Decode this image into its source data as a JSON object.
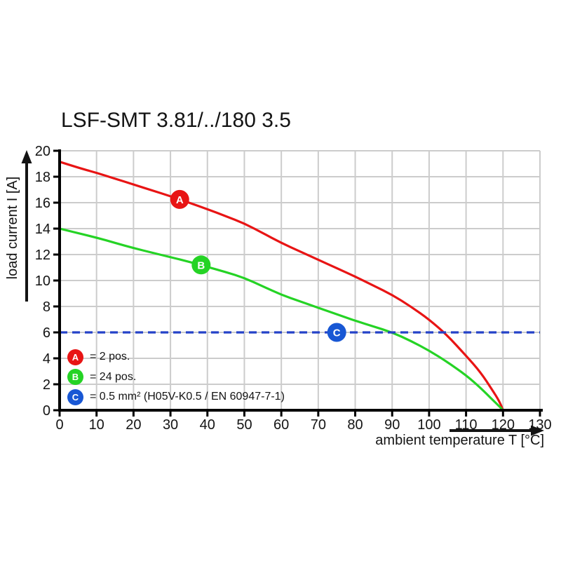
{
  "title": "LSF-SMT 3.81/../180 3.5",
  "chart_data": {
    "type": "line",
    "title": "LSF-SMT 3.81/../180 3.5",
    "xlabel": "ambient temperature T [°C]",
    "ylabel": "load current I [A]",
    "xlim": [
      0,
      130
    ],
    "ylim": [
      0,
      20
    ],
    "xticks": [
      0,
      10,
      20,
      30,
      40,
      50,
      60,
      70,
      80,
      90,
      100,
      110,
      120,
      130
    ],
    "yticks": [
      0,
      2,
      4,
      6,
      8,
      10,
      12,
      14,
      16,
      18,
      20
    ],
    "grid": true,
    "legend_position": "inside bottom-left",
    "colors": {
      "grid": "#cccccc",
      "axis": "#000000",
      "series_a_red": "#e81414",
      "series_b_green": "#25d325",
      "limit_line_blue": "#2442c8",
      "badge_blue": "#1857d4"
    },
    "series": [
      {
        "name": "A",
        "label": "2 pos.",
        "color": "#e81414",
        "dashed": false,
        "points": [
          [
            0,
            19.15
          ],
          [
            5,
            18.7
          ],
          [
            10,
            18.3
          ],
          [
            15,
            17.85
          ],
          [
            20,
            17.4
          ],
          [
            25,
            16.95
          ],
          [
            30,
            16.5
          ],
          [
            35,
            16.0
          ],
          [
            40,
            15.5
          ],
          [
            45,
            14.95
          ],
          [
            50,
            14.4
          ],
          [
            55,
            13.65
          ],
          [
            60,
            12.9
          ],
          [
            65,
            12.25
          ],
          [
            70,
            11.6
          ],
          [
            75,
            10.95
          ],
          [
            80,
            10.3
          ],
          [
            85,
            9.6
          ],
          [
            90,
            8.9
          ],
          [
            95,
            8.0
          ],
          [
            100,
            7.0
          ],
          [
            105,
            5.75
          ],
          [
            110,
            4.2
          ],
          [
            114,
            2.9
          ],
          [
            117,
            1.6
          ],
          [
            119,
            0.7
          ],
          [
            120,
            0
          ]
        ]
      },
      {
        "name": "B",
        "label": "24 pos.",
        "color": "#25d325",
        "dashed": false,
        "points": [
          [
            0,
            14.0
          ],
          [
            5,
            13.65
          ],
          [
            10,
            13.3
          ],
          [
            15,
            12.9
          ],
          [
            20,
            12.5
          ],
          [
            25,
            12.15
          ],
          [
            30,
            11.8
          ],
          [
            35,
            11.45
          ],
          [
            40,
            11.05
          ],
          [
            45,
            10.65
          ],
          [
            50,
            10.2
          ],
          [
            55,
            9.55
          ],
          [
            60,
            8.9
          ],
          [
            65,
            8.4
          ],
          [
            70,
            7.9
          ],
          [
            75,
            7.4
          ],
          [
            80,
            6.9
          ],
          [
            85,
            6.45
          ],
          [
            90,
            6.0
          ],
          [
            95,
            5.35
          ],
          [
            100,
            4.6
          ],
          [
            105,
            3.7
          ],
          [
            110,
            2.7
          ],
          [
            114,
            1.7
          ],
          [
            117,
            0.85
          ],
          [
            119,
            0.3
          ],
          [
            120,
            0
          ]
        ]
      },
      {
        "name": "C",
        "label": "0.5 mm² (H05V-K0.5 / EN 60947-7-1)",
        "color": "#2442c8",
        "dashed": true,
        "points": [
          [
            0,
            6
          ],
          [
            130,
            6
          ]
        ]
      }
    ],
    "markers": [
      {
        "letter": "A",
        "x": 32.5,
        "y": 16.25,
        "color": "#e81414"
      },
      {
        "letter": "B",
        "x": 38.3,
        "y": 11.2,
        "color": "#25d325"
      },
      {
        "letter": "C",
        "x": 75,
        "y": 6,
        "color": "#1857d4"
      }
    ],
    "legend": [
      {
        "letter": "A",
        "color": "#e81414",
        "text": "= 2 pos."
      },
      {
        "letter": "B",
        "color": "#25d325",
        "text": "= 24 pos."
      },
      {
        "letter": "C",
        "color": "#1857d4",
        "text": "= 0.5 mm² (H05V-K0.5 / EN 60947-7-1)"
      }
    ]
  }
}
